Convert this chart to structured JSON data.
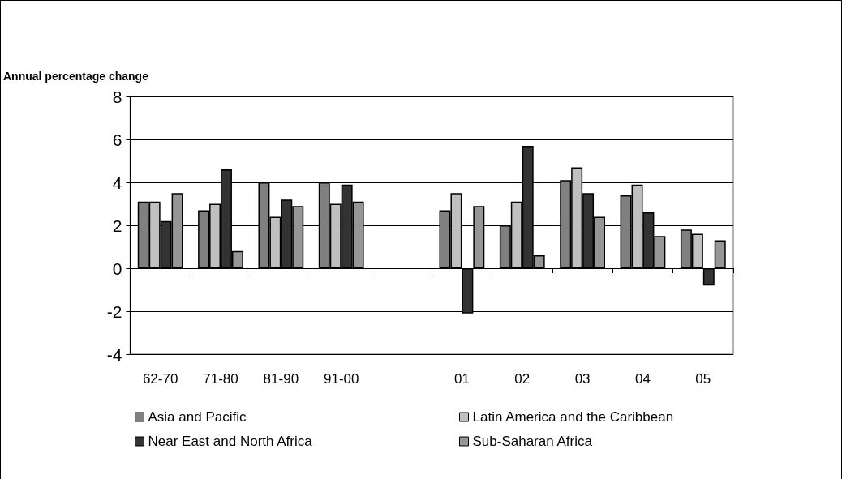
{
  "chart_data": {
    "type": "bar",
    "ylabel": "Annual percentage change",
    "categories": [
      "62-70",
      "71-80",
      "81-90",
      "91-00",
      null,
      "01",
      "02",
      "03",
      "04",
      "05"
    ],
    "series": [
      {
        "name": "Asia and Pacific",
        "color": "#808080",
        "values": [
          3.1,
          2.7,
          4.0,
          4.0,
          null,
          2.7,
          2.0,
          4.1,
          3.4,
          1.8
        ]
      },
      {
        "name": "Latin America and the Caribbean",
        "color": "#c0c0c0",
        "values": [
          3.1,
          3.0,
          2.4,
          3.0,
          null,
          3.5,
          3.1,
          4.7,
          3.9,
          1.6
        ]
      },
      {
        "name": "Near East and North Africa",
        "color": "#333333",
        "values": [
          2.2,
          4.6,
          3.2,
          3.9,
          null,
          -2.1,
          5.7,
          3.5,
          2.6,
          -0.8
        ]
      },
      {
        "name": "Sub-Saharan Africa",
        "color": "#969696",
        "values": [
          3.5,
          0.8,
          2.9,
          3.1,
          null,
          2.9,
          0.6,
          2.4,
          1.5,
          1.3
        ]
      }
    ],
    "ylim": [
      -4,
      8
    ],
    "yticks": [
      -4,
      -2,
      0,
      2,
      4,
      6,
      8
    ],
    "grid": "y",
    "legend": "bottom"
  }
}
